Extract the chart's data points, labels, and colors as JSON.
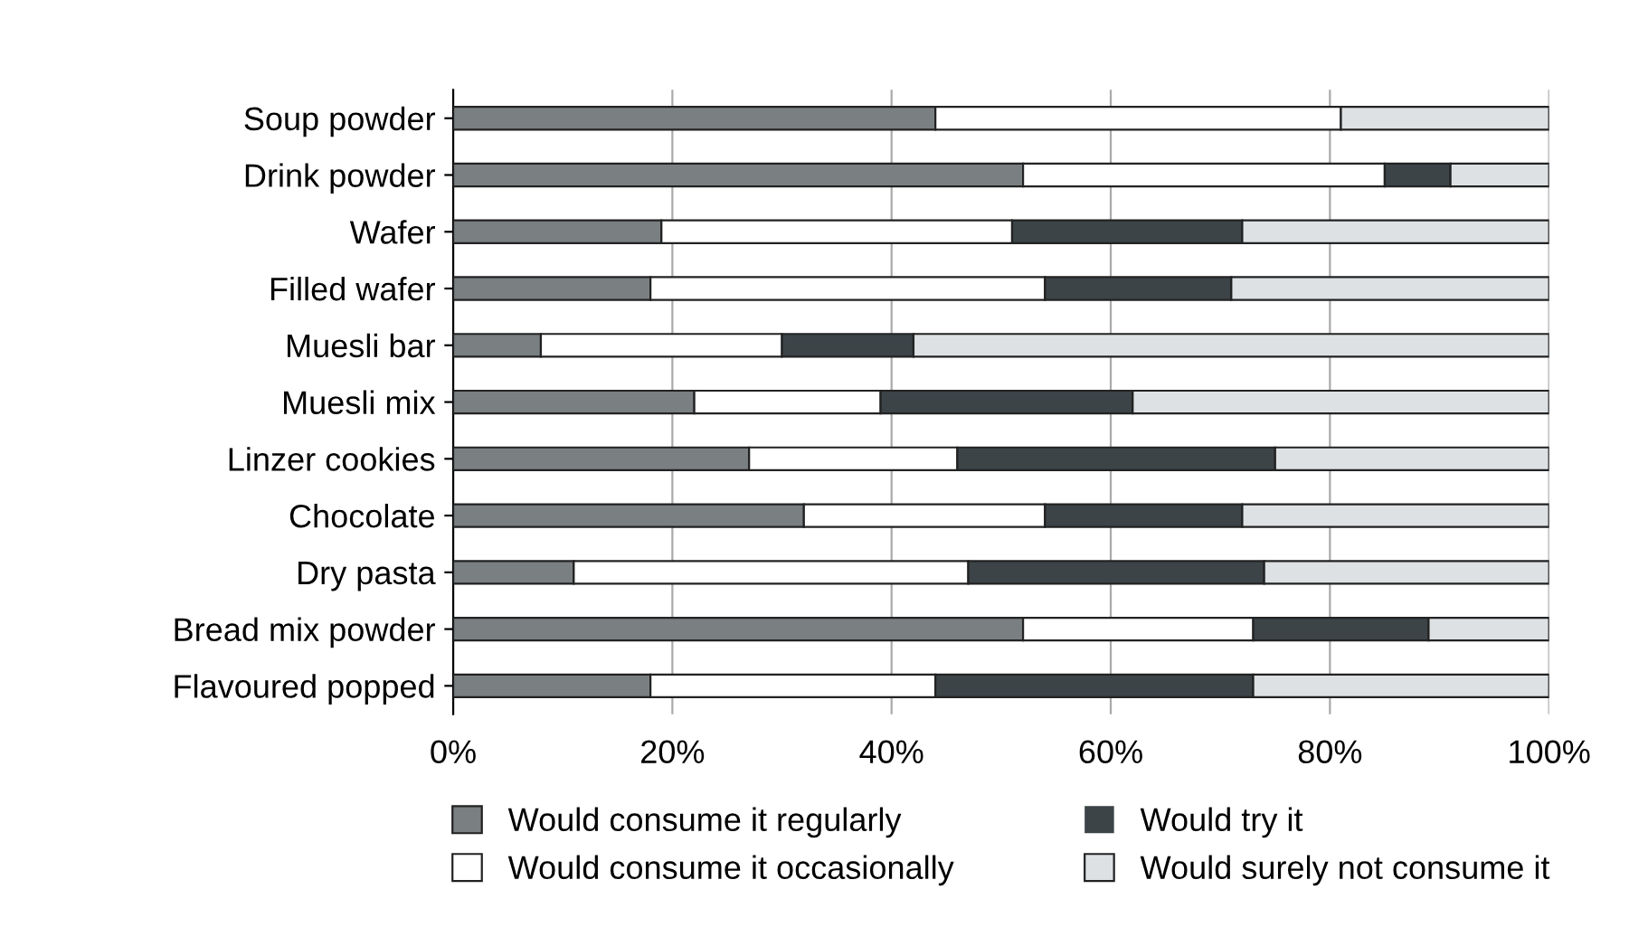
{
  "chart_data": {
    "type": "bar",
    "orientation": "horizontal",
    "stacked": true,
    "categories": [
      "Soup powder",
      "Drink powder",
      "Wafer",
      "Filled wafer",
      "Muesli bar",
      "Muesli mix",
      "Linzer cookies",
      "Chocolate",
      "Dry pasta",
      "Bread mix powder",
      "Flavoured popped"
    ],
    "series": [
      {
        "name": "Would consume it regularly",
        "color": "#7a7f82",
        "values": [
          44,
          52,
          19,
          18,
          8,
          22,
          27,
          32,
          11,
          52,
          18
        ]
      },
      {
        "name": "Would consume it occasionally",
        "color": "#ffffff",
        "values": [
          37,
          33,
          32,
          36,
          22,
          17,
          19,
          22,
          36,
          21,
          26
        ]
      },
      {
        "name": "Would try it",
        "color": "#3c4448",
        "values": [
          null,
          6,
          21,
          17,
          12,
          23,
          29,
          18,
          27,
          16,
          29
        ]
      },
      {
        "name": "Would surely not consume it",
        "color": "#dde1e3",
        "values": [
          19,
          9,
          28,
          29,
          58,
          38,
          25,
          28,
          26,
          11,
          27
        ]
      }
    ],
    "xlim": [
      0,
      100
    ],
    "xticks": [
      {
        "value": 0,
        "label": "0%"
      },
      {
        "value": 20,
        "label": "20%"
      },
      {
        "value": 40,
        "label": "40%"
      },
      {
        "value": 60,
        "label": "60%"
      },
      {
        "value": 80,
        "label": "80%"
      },
      {
        "value": 100,
        "label": "100%"
      }
    ],
    "grid": "x",
    "legend": "bottom"
  }
}
